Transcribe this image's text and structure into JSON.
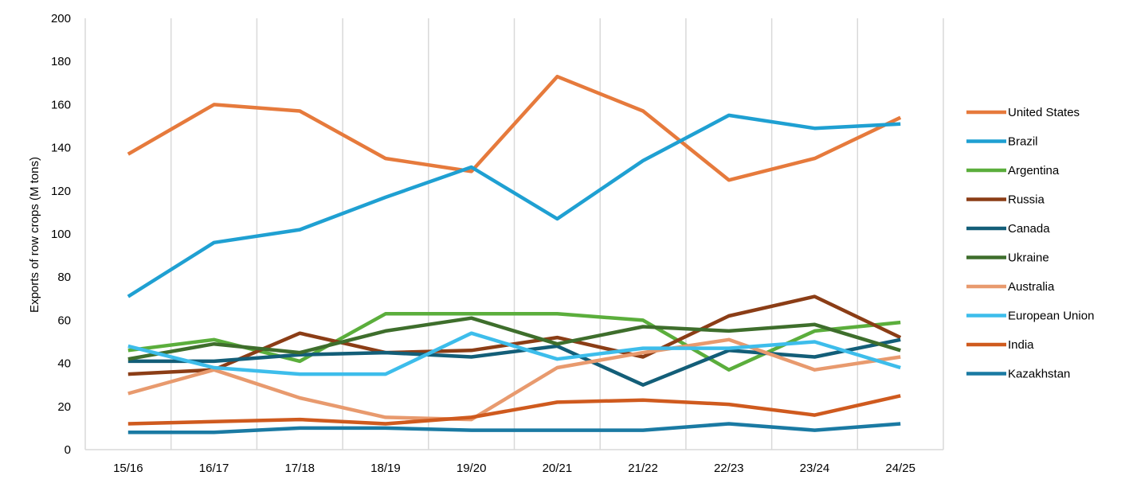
{
  "chart_data": {
    "type": "line",
    "title": "",
    "xlabel": "",
    "ylabel": "Exports of row crops (M tons)",
    "ylim": [
      0,
      200
    ],
    "yticks": [
      0,
      20,
      40,
      60,
      80,
      100,
      120,
      140,
      160,
      180,
      200
    ],
    "grid": "vertical",
    "legend_position": "right",
    "categories": [
      "15/16",
      "16/17",
      "17/18",
      "18/19",
      "19/20",
      "20/21",
      "21/22",
      "22/23",
      "23/24",
      "24/25"
    ],
    "series": [
      {
        "name": "United States",
        "color": "#E67A3C",
        "values": [
          137,
          160,
          157,
          135,
          129,
          173,
          157,
          125,
          135,
          154
        ]
      },
      {
        "name": "Brazil",
        "color": "#1FA0D2",
        "values": [
          71,
          96,
          102,
          117,
          131,
          107,
          134,
          155,
          149,
          151
        ]
      },
      {
        "name": "Argentina",
        "color": "#5BAE3C",
        "values": [
          46,
          51,
          41,
          63,
          63,
          63,
          60,
          37,
          55,
          59
        ]
      },
      {
        "name": "Russia",
        "color": "#8B3D16",
        "values": [
          35,
          37,
          54,
          45,
          46,
          52,
          43,
          62,
          71,
          52
        ]
      },
      {
        "name": "Canada",
        "color": "#135E78",
        "values": [
          41,
          41,
          44,
          45,
          43,
          48,
          30,
          46,
          43,
          51
        ]
      },
      {
        "name": "Ukraine",
        "color": "#3E6E2C",
        "values": [
          42,
          49,
          45,
          55,
          61,
          49,
          57,
          55,
          58,
          46
        ]
      },
      {
        "name": "Australia",
        "color": "#E89A6E",
        "values": [
          26,
          37,
          24,
          15,
          14,
          38,
          45,
          51,
          37,
          43
        ]
      },
      {
        "name": "European Union",
        "color": "#3DBDEB",
        "values": [
          48,
          38,
          35,
          35,
          54,
          42,
          47,
          47,
          50,
          38
        ]
      },
      {
        "name": "India",
        "color": "#CF5A1E",
        "values": [
          12,
          13,
          14,
          12,
          15,
          22,
          23,
          21,
          16,
          25
        ]
      },
      {
        "name": "Kazakhstan",
        "color": "#1A7AA3",
        "values": [
          8,
          8,
          10,
          10,
          9,
          9,
          9,
          12,
          9,
          12
        ]
      }
    ]
  }
}
